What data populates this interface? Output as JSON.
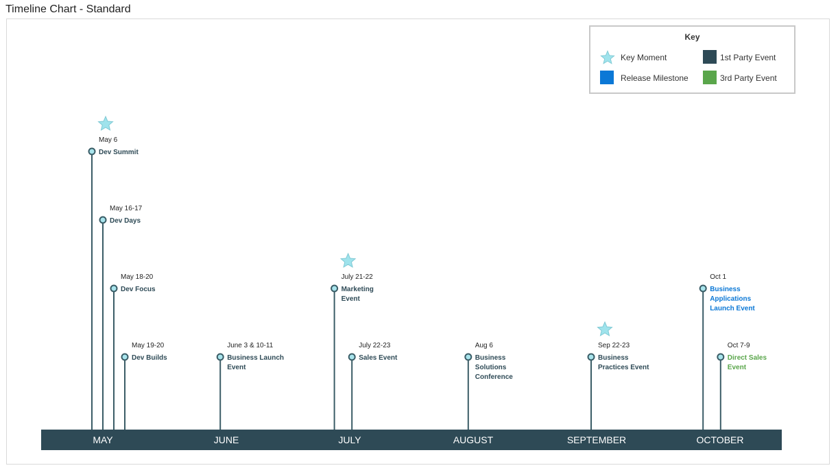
{
  "page": {
    "title": "Timeline Chart - Standard"
  },
  "key": {
    "title": "Key",
    "items": [
      {
        "label": "Key Moment",
        "icon": "star-icon",
        "color": "#9fe3ec"
      },
      {
        "label": "1st Party Event",
        "icon": "square-icon",
        "color": "#2e4a56"
      },
      {
        "label": "Release Milestone",
        "icon": "square-icon",
        "color": "#0b78d6"
      },
      {
        "label": "3rd Party Event",
        "icon": "square-icon",
        "color": "#5aa64b"
      }
    ]
  },
  "colors": {
    "axis_bar": "#2e4a56",
    "stem": "#3a5c66",
    "marker_fill": "#a8e4ec",
    "first_party": "#2e4a56",
    "release": "#0b78d6",
    "third_party": "#5aa64b",
    "star": "#9fe3ec"
  },
  "chart_data": {
    "type": "timeline",
    "title": "Timeline Chart - Standard",
    "months": [
      "MAY",
      "JUNE",
      "JULY",
      "AUGUST",
      "SEPTEMBER",
      "OCTOBER"
    ],
    "events": [
      {
        "date": "May 6",
        "name": [
          "Dev Summit"
        ],
        "category": "first_party",
        "key_moment": true,
        "day_index": 5,
        "tier": 4
      },
      {
        "date": "May 16-17",
        "name": [
          "Dev Days"
        ],
        "category": "first_party",
        "key_moment": false,
        "day_index": 15,
        "tier": 3
      },
      {
        "date": "May 18-20",
        "name": [
          "Dev Focus"
        ],
        "category": "first_party",
        "key_moment": false,
        "day_index": 25,
        "tier": 2
      },
      {
        "date": "May 19-20",
        "name": [
          "Dev Builds"
        ],
        "category": "first_party",
        "key_moment": false,
        "day_index": 35,
        "tier": 1
      },
      {
        "date": "June 3 & 10-11",
        "name": [
          "Business Launch",
          "Event"
        ],
        "category": "first_party",
        "key_moment": false,
        "day_index": 122,
        "tier": 1
      },
      {
        "date": "July 21-22",
        "name": [
          "Marketing",
          "Event"
        ],
        "category": "first_party",
        "key_moment": true,
        "day_index": 226,
        "tier": 2
      },
      {
        "date": "July 22-23",
        "name": [
          "Sales Event"
        ],
        "category": "first_party",
        "key_moment": false,
        "day_index": 242,
        "tier": 1
      },
      {
        "date": "Aug 6",
        "name": [
          "Business",
          "Solutions",
          "Conference"
        ],
        "category": "first_party",
        "key_moment": false,
        "day_index": 348,
        "tier": 1
      },
      {
        "date": "Sep 22-23",
        "name": [
          "Business",
          "Practices Event"
        ],
        "category": "first_party",
        "key_moment": true,
        "day_index": 460,
        "tier": 1
      },
      {
        "date": "Oct 1",
        "name": [
          "Business",
          "Applications",
          "Launch Event"
        ],
        "category": "release",
        "key_moment": false,
        "day_index": 562,
        "tier": 2
      },
      {
        "date": "Oct 7-9",
        "name": [
          "Direct Sales",
          "Event"
        ],
        "category": "third_party",
        "key_moment": false,
        "day_index": 578,
        "tier": 1
      }
    ]
  }
}
